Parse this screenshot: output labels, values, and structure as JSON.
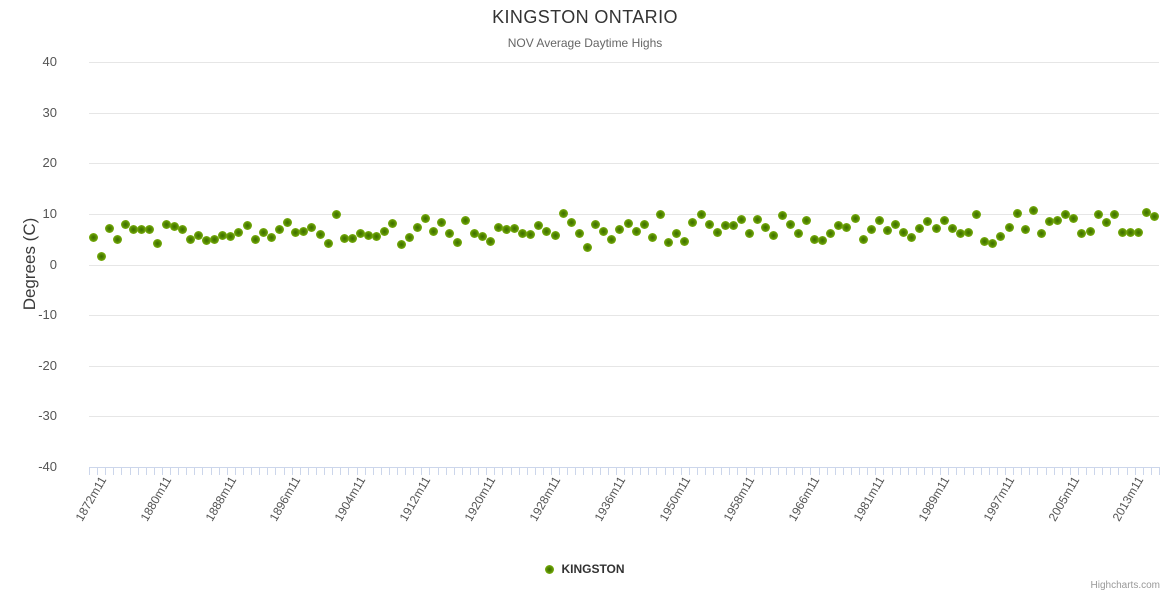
{
  "header": {
    "title": "KINGSTON ONTARIO",
    "subtitle": "NOV Average Daytime Highs"
  },
  "legend": {
    "items": [
      {
        "label": "KINGSTON"
      }
    ]
  },
  "credits": {
    "label": "Highcharts.com"
  },
  "colors": {
    "marker_outer": "#8cc41f",
    "marker_core": "#3c6b00",
    "gridline": "#e6e6e6",
    "axis_line": "#ccd6eb",
    "title_text": "#333333",
    "label_text": "#555555"
  },
  "chart_data": {
    "type": "scatter",
    "title": "KINGSTON ONTARIO",
    "subtitle": "NOV Average Daytime Highs",
    "xlabel": "",
    "ylabel": "Degrees (C)",
    "ylim": [
      -40,
      40
    ],
    "yticks": [
      40,
      30,
      20,
      10,
      0,
      -10,
      -20,
      -30,
      -40
    ],
    "grid": true,
    "legend_position": "bottom",
    "xtick_interval": 8,
    "xtick_labels": [
      "1872m11",
      "1880m11",
      "1888m11",
      "1896m11",
      "1904m11",
      "1912m11",
      "1920m11",
      "1928m11",
      "1936m11",
      "1950m11",
      "1958m11",
      "1966m11",
      "1981m11",
      "1989m11",
      "1997m11",
      "2005m11",
      "2013m11"
    ],
    "series": [
      {
        "name": "KINGSTON",
        "color": "#8cc41f",
        "values": [
          5.3,
          1.5,
          7.1,
          5.0,
          7.9,
          6.9,
          6.9,
          6.9,
          4.2,
          7.9,
          7.5,
          7.0,
          4.9,
          5.8,
          4.7,
          4.9,
          5.7,
          5.5,
          6.3,
          7.8,
          5.0,
          6.3,
          5.3,
          7.0,
          8.3,
          6.3,
          6.6,
          7.3,
          5.9,
          4.2,
          9.8,
          5.1,
          5.1,
          6.1,
          5.8,
          5.5,
          6.6,
          8.1,
          3.9,
          5.3,
          7.3,
          9.0,
          6.5,
          8.2,
          6.1,
          4.3,
          8.7,
          6.2,
          5.5,
          4.6,
          7.4,
          7.0,
          7.1,
          6.2,
          5.9,
          7.8,
          6.6,
          5.7,
          10.1,
          8.2,
          6.1,
          3.4,
          7.9,
          6.6,
          5.0,
          6.9,
          8.1,
          6.6,
          7.9,
          5.4,
          9.9,
          4.3,
          6.2,
          4.5,
          8.3,
          9.8,
          7.9,
          6.3,
          7.8,
          7.8,
          8.9,
          6.2,
          8.9,
          7.4,
          5.7,
          9.7,
          7.9,
          6.1,
          8.7,
          5.0,
          4.7,
          6.1,
          7.7,
          7.4,
          9.1,
          4.9,
          7.0,
          8.7,
          6.8,
          7.9,
          6.3,
          5.4,
          7.1,
          8.5,
          7.1,
          8.6,
          7.1,
          6.2,
          6.3,
          9.8,
          4.5,
          4.2,
          5.5,
          7.4,
          10.1,
          6.9,
          10.6,
          6.1,
          8.5,
          8.7,
          9.9,
          9.0,
          6.1,
          6.6,
          9.9,
          8.3,
          9.9,
          6.3,
          6.3,
          6.4,
          10.2,
          9.5
        ]
      }
    ]
  }
}
